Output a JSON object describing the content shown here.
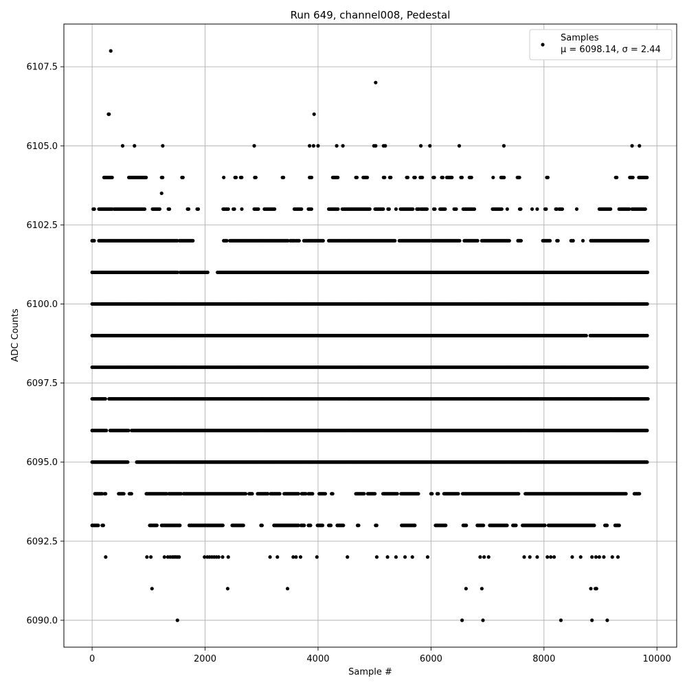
{
  "chart_data": {
    "type": "scatter",
    "title": "Run 649, channel008, Pedestal",
    "xlabel": "Sample #",
    "ylabel": "ADC Counts",
    "xlim": [
      -500,
      10350
    ],
    "ylim": [
      6089.15,
      6108.85
    ],
    "xticks": [
      0,
      2000,
      4000,
      6000,
      8000,
      10000
    ],
    "xtick_labels": [
      "0",
      "2000",
      "4000",
      "6000",
      "8000",
      "10000"
    ],
    "yticks": [
      6090.0,
      6092.5,
      6095.0,
      6097.5,
      6100.0,
      6102.5,
      6105.0,
      6107.5
    ],
    "ytick_labels": [
      "6090.0",
      "6092.5",
      "6095.0",
      "6097.5",
      "6100.0",
      "6102.5",
      "6105.0",
      "6107.5"
    ],
    "grid": true,
    "legend_position": "top-right",
    "marker_color": "#000000",
    "series": [
      {
        "name": "Samples",
        "stats_label": "μ = 6098.14, σ = 2.44",
        "points": [
          [
            330,
            6108
          ],
          [
            5020,
            6107
          ],
          [
            290,
            6106
          ],
          [
            300,
            6106
          ],
          [
            3930,
            6106
          ],
          [
            540,
            6105
          ],
          [
            750,
            6105
          ],
          [
            1250,
            6105
          ],
          [
            2870,
            6105
          ],
          [
            3850,
            6105
          ],
          [
            3920,
            6105
          ],
          [
            4000,
            6105
          ],
          [
            4330,
            6105
          ],
          [
            4440,
            6105
          ],
          [
            4990,
            6105
          ],
          [
            5020,
            6105
          ],
          [
            5160,
            6105
          ],
          [
            5190,
            6105
          ],
          [
            5820,
            6105
          ],
          [
            5980,
            6105
          ],
          [
            6500,
            6105
          ],
          [
            7290,
            6105
          ],
          [
            9560,
            6105
          ],
          [
            9690,
            6105
          ],
          [
            1230,
            6103.5
          ],
          [
            6550,
            6090
          ],
          [
            6920,
            6090
          ],
          [
            8300,
            6090
          ],
          [
            8850,
            6090
          ],
          [
            9120,
            6090
          ],
          [
            1510,
            6090
          ],
          [
            1060,
            6091
          ],
          [
            2400,
            6091
          ],
          [
            3460,
            6091
          ],
          [
            6620,
            6091
          ],
          [
            6900,
            6091
          ],
          [
            8830,
            6091
          ],
          [
            8910,
            6091
          ],
          [
            8930,
            6091
          ],
          [
            240,
            6092
          ],
          [
            970,
            6092
          ],
          [
            1040,
            6092
          ],
          [
            1280,
            6092
          ],
          [
            1340,
            6092
          ],
          [
            1380,
            6092
          ],
          [
            1420,
            6092
          ],
          [
            1450,
            6092
          ],
          [
            1480,
            6092
          ],
          [
            1510,
            6092
          ],
          [
            1540,
            6092
          ],
          [
            1990,
            6092
          ],
          [
            2040,
            6092
          ],
          [
            2080,
            6092
          ],
          [
            2120,
            6092
          ],
          [
            2160,
            6092
          ],
          [
            2200,
            6092
          ],
          [
            2240,
            6092
          ],
          [
            2310,
            6092
          ],
          [
            2410,
            6092
          ],
          [
            3150,
            6092
          ],
          [
            3280,
            6092
          ],
          [
            3560,
            6092
          ],
          [
            3610,
            6092
          ],
          [
            3690,
            6092
          ],
          [
            3980,
            6092
          ],
          [
            4520,
            6092
          ],
          [
            5040,
            6092
          ],
          [
            5230,
            6092
          ],
          [
            5380,
            6092
          ],
          [
            5540,
            6092
          ],
          [
            5670,
            6092
          ],
          [
            5940,
            6092
          ],
          [
            6870,
            6092
          ],
          [
            6940,
            6092
          ],
          [
            7020,
            6092
          ],
          [
            7650,
            6092
          ],
          [
            7750,
            6092
          ],
          [
            7880,
            6092
          ],
          [
            8060,
            6092
          ],
          [
            8120,
            6092
          ],
          [
            8180,
            6092
          ],
          [
            8500,
            6092
          ],
          [
            8650,
            6092
          ],
          [
            8850,
            6092
          ],
          [
            8920,
            6092
          ],
          [
            8980,
            6092
          ],
          [
            9060,
            6092
          ],
          [
            9210,
            6092
          ],
          [
            9310,
            6092
          ]
        ],
        "bands": [
          {
            "y": 6093,
            "ranges": [
              [
                0,
                110
              ],
              [
                180,
                210
              ],
              [
                1020,
                1150
              ],
              [
                1230,
                1560
              ],
              [
                1720,
                2330
              ],
              [
                2480,
                2680
              ],
              [
                2990,
                3020
              ],
              [
                3220,
                3660
              ],
              [
                3700,
                3770
              ],
              [
                3830,
                3880
              ],
              [
                3990,
                4080
              ],
              [
                4190,
                4230
              ],
              [
                4340,
                4460
              ],
              [
                4700,
                4720
              ],
              [
                5020,
                5050
              ],
              [
                5480,
                5720
              ],
              [
                6080,
                6260
              ],
              [
                6570,
                6640
              ],
              [
                6820,
                6940
              ],
              [
                7040,
                7360
              ],
              [
                7450,
                7520
              ],
              [
                7620,
                8020
              ],
              [
                8080,
                8900
              ],
              [
                9080,
                9130
              ],
              [
                9260,
                9340
              ]
            ]
          },
          {
            "y": 6094,
            "ranges": [
              [
                50,
                180
              ],
              [
                220,
                240
              ],
              [
                470,
                560
              ],
              [
                660,
                700
              ],
              [
                960,
                1330
              ],
              [
                1360,
                1580
              ],
              [
                1620,
                2720
              ],
              [
                2780,
                2850
              ],
              [
                2930,
                3120
              ],
              [
                3160,
                3330
              ],
              [
                3400,
                3660
              ],
              [
                3710,
                3790
              ],
              [
                3830,
                3910
              ],
              [
                4020,
                4130
              ],
              [
                4240,
                4270
              ],
              [
                4670,
                4820
              ],
              [
                4880,
                5020
              ],
              [
                5150,
                5410
              ],
              [
                5470,
                5780
              ],
              [
                6000,
                6020
              ],
              [
                6110,
                6140
              ],
              [
                6230,
                6490
              ],
              [
                6560,
                7550
              ],
              [
                7670,
                9460
              ],
              [
                9600,
                9700
              ]
            ]
          },
          {
            "y": 6095,
            "ranges": [
              [
                0,
                640
              ],
              [
                790,
                9830
              ]
            ]
          },
          {
            "y": 6096,
            "ranges": [
              [
                0,
                260
              ],
              [
                320,
                650
              ],
              [
                700,
                9840
              ]
            ]
          },
          {
            "y": 6097,
            "ranges": [
              [
                0,
                250
              ],
              [
                300,
                9840
              ]
            ]
          },
          {
            "y": 6098,
            "ranges": [
              [
                0,
                9840
              ]
            ]
          },
          {
            "y": 6099,
            "ranges": [
              [
                0,
                8750
              ],
              [
                8820,
                9840
              ]
            ]
          },
          {
            "y": 6100,
            "ranges": [
              [
                0,
                9840
              ]
            ]
          },
          {
            "y": 6101,
            "ranges": [
              [
                0,
                1520
              ],
              [
                1560,
                2050
              ],
              [
                2220,
                9840
              ]
            ]
          },
          {
            "y": 6102,
            "ranges": [
              [
                0,
                40
              ],
              [
                120,
                1510
              ],
              [
                1550,
                1800
              ],
              [
                2330,
                2390
              ],
              [
                2440,
                3470
              ],
              [
                3510,
                3590
              ],
              [
                3610,
                3670
              ],
              [
                3750,
                3990
              ],
              [
                4000,
                4100
              ],
              [
                4190,
                5370
              ],
              [
                5440,
                5990
              ],
              [
                6020,
                6520
              ],
              [
                6590,
                6840
              ],
              [
                6900,
                7400
              ],
              [
                7540,
                7600
              ],
              [
                7980,
                8120
              ],
              [
                8230,
                8260
              ],
              [
                8480,
                8530
              ],
              [
                8690,
                8700
              ],
              [
                8830,
                9840
              ]
            ]
          },
          {
            "y": 6103,
            "ranges": [
              [
                20,
                40
              ],
              [
                120,
                360
              ],
              [
                390,
                940
              ],
              [
                1070,
                1200
              ],
              [
                1350,
                1380
              ],
              [
                1690,
                1720
              ],
              [
                1860,
                1890
              ],
              [
                2320,
                2410
              ],
              [
                2500,
                2520
              ],
              [
                2650,
                2660
              ],
              [
                2870,
                2950
              ],
              [
                3050,
                3230
              ],
              [
                3580,
                3720
              ],
              [
                3830,
                3890
              ],
              [
                4190,
                4360
              ],
              [
                4430,
                4930
              ],
              [
                5010,
                5160
              ],
              [
                5240,
                5260
              ],
              [
                5380,
                5390
              ],
              [
                5460,
                5680
              ],
              [
                5750,
                5800
              ],
              [
                5820,
                5930
              ],
              [
                6050,
                6080
              ],
              [
                6160,
                6260
              ],
              [
                6410,
                6460
              ],
              [
                6570,
                6770
              ],
              [
                7090,
                7260
              ],
              [
                7350,
                7360
              ],
              [
                7570,
                7600
              ],
              [
                7790,
                7800
              ],
              [
                7880,
                7890
              ],
              [
                8020,
                8040
              ],
              [
                8210,
                8240
              ],
              [
                8270,
                8330
              ],
              [
                8580,
                8590
              ],
              [
                8980,
                9180
              ],
              [
                9330,
                9520
              ],
              [
                9560,
                9800
              ]
            ]
          },
          {
            "y": 6104,
            "ranges": [
              [
                210,
                370
              ],
              [
                650,
                960
              ],
              [
                1230,
                1250
              ],
              [
                1590,
                1610
              ],
              [
                2330,
                2340
              ],
              [
                2530,
                2550
              ],
              [
                2630,
                2650
              ],
              [
                2880,
                2900
              ],
              [
                3370,
                3390
              ],
              [
                3850,
                3900
              ],
              [
                4260,
                4360
              ],
              [
                4670,
                4690
              ],
              [
                4800,
                4880
              ],
              [
                5160,
                5180
              ],
              [
                5270,
                5290
              ],
              [
                5570,
                5600
              ],
              [
                5700,
                5720
              ],
              [
                5810,
                5860
              ],
              [
                6040,
                6060
              ],
              [
                6190,
                6210
              ],
              [
                6280,
                6380
              ],
              [
                6530,
                6550
              ],
              [
                6680,
                6720
              ],
              [
                7100,
                7110
              ],
              [
                7240,
                7300
              ],
              [
                7530,
                7570
              ],
              [
                8050,
                8070
              ],
              [
                9270,
                9290
              ],
              [
                9520,
                9590
              ],
              [
                9680,
                9830
              ]
            ]
          }
        ]
      }
    ]
  }
}
